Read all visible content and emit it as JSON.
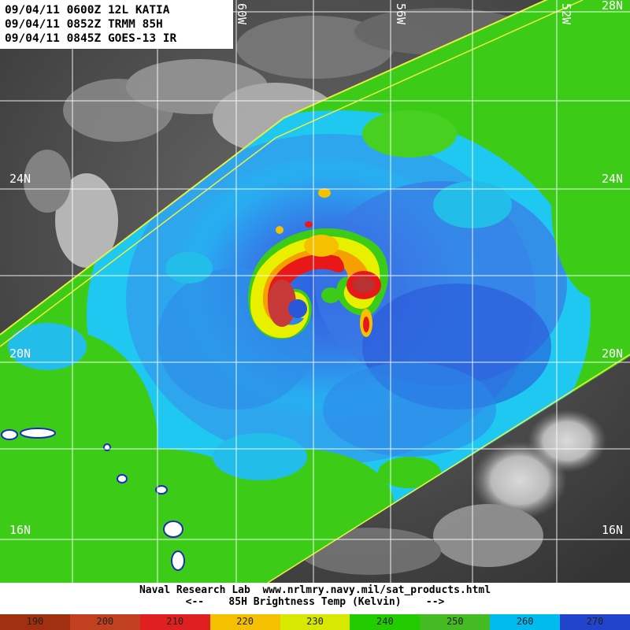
{
  "header": {
    "line1": "09/04/11 0600Z 12L KATIA",
    "line2": "09/04/11 0852Z TRMM 85H",
    "line3": "09/04/11 0845Z GOES-13 IR"
  },
  "map": {
    "lat_labels_left": [
      "24N",
      "20N",
      "16N"
    ],
    "lat_labels_right": [
      "24N",
      "20N",
      "16N",
      "28N"
    ],
    "lon_labels_top": [
      "60W",
      "56W",
      "52W"
    ]
  },
  "footer": {
    "credit": "Naval Research Lab  www.nrlmry.navy.mil/sat_products.html",
    "scale_title": "<--    85H Brightness Temp (Kelvin)    -->"
  },
  "colorbar": {
    "ticks": [
      "190",
      "200",
      "210",
      "220",
      "230",
      "240",
      "250",
      "260",
      "270"
    ],
    "colors": [
      "#a03010",
      "#c04020",
      "#e02020",
      "#f5c000",
      "#d8e800",
      "#22cc00",
      "#44bb22",
      "#00bbee",
      "#2244cc"
    ]
  },
  "storm": {
    "name": "KATIA",
    "id": "12L"
  }
}
